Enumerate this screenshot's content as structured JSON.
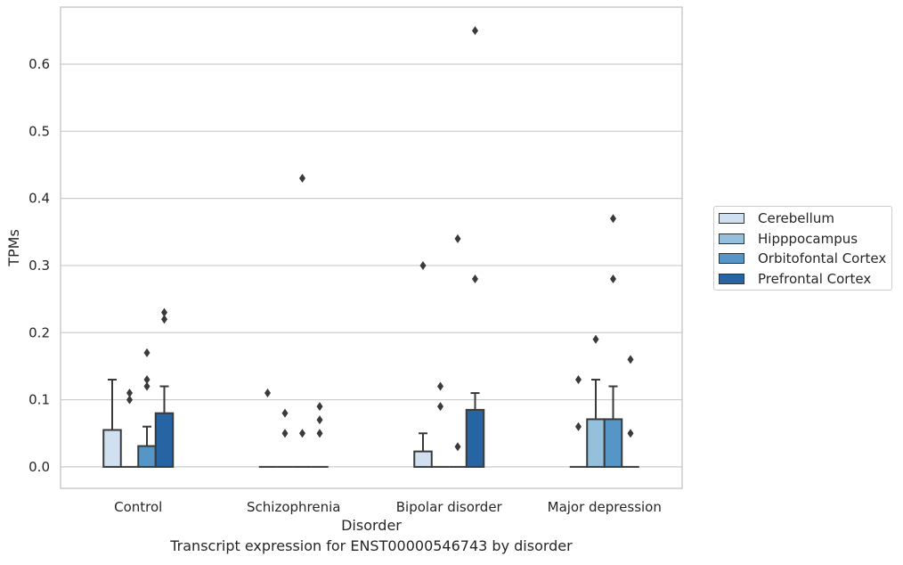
{
  "chart_data": {
    "type": "box",
    "title": "",
    "caption": "Transcript expression for ENST00000546743 by disorder",
    "xlabel": "Disorder",
    "ylabel": "TPMs",
    "ylim": [
      -0.032,
      0.685
    ],
    "yticks": [
      0.0,
      0.1,
      0.2,
      0.3,
      0.4,
      0.5,
      0.6
    ],
    "ytick_labels": [
      "0.0",
      "0.1",
      "0.2",
      "0.3",
      "0.4",
      "0.5",
      "0.6"
    ],
    "grid": "horizontal",
    "legend_position": "right",
    "categories": [
      "Control",
      "Schizophrenia",
      "Bipolar disorder",
      "Major depression"
    ],
    "series": [
      {
        "name": "Cerebellum",
        "color": "#d0e0f0",
        "boxes": [
          {
            "q1": 0.0,
            "q3": 0.055,
            "median": 0.0,
            "whisker_low": 0.0,
            "whisker_high": 0.13,
            "outliers": []
          },
          {
            "q1": 0.0,
            "q3": 0.0,
            "median": 0.0,
            "whisker_low": 0.0,
            "whisker_high": 0.0,
            "outliers": [
              0.11
            ]
          },
          {
            "q1": 0.0,
            "q3": 0.023,
            "median": 0.0,
            "whisker_low": 0.0,
            "whisker_high": 0.05,
            "outliers": [
              0.3
            ]
          },
          {
            "q1": 0.0,
            "q3": 0.0,
            "median": 0.0,
            "whisker_low": 0.0,
            "whisker_high": 0.0,
            "outliers": [
              0.13,
              0.06
            ]
          }
        ]
      },
      {
        "name": "Hipppocampus",
        "color": "#94c0dc",
        "boxes": [
          {
            "q1": 0.0,
            "q3": 0.0,
            "median": 0.0,
            "whisker_low": 0.0,
            "whisker_high": 0.0,
            "outliers": [
              0.11,
              0.1
            ]
          },
          {
            "q1": 0.0,
            "q3": 0.0,
            "median": 0.0,
            "whisker_low": 0.0,
            "whisker_high": 0.0,
            "outliers": [
              0.08,
              0.05
            ]
          },
          {
            "q1": 0.0,
            "q3": 0.0,
            "median": 0.0,
            "whisker_low": 0.0,
            "whisker_high": 0.0,
            "outliers": [
              0.12,
              0.09
            ]
          },
          {
            "q1": 0.0,
            "q3": 0.071,
            "median": 0.0,
            "whisker_low": 0.0,
            "whisker_high": 0.13,
            "outliers": [
              0.19
            ]
          }
        ]
      },
      {
        "name": "Orbitofontal Cortex",
        "color": "#5696c6",
        "boxes": [
          {
            "q1": 0.0,
            "q3": 0.031,
            "median": 0.0,
            "whisker_low": 0.0,
            "whisker_high": 0.06,
            "outliers": [
              0.17,
              0.13,
              0.12
            ]
          },
          {
            "q1": 0.0,
            "q3": 0.0,
            "median": 0.0,
            "whisker_low": 0.0,
            "whisker_high": 0.0,
            "outliers": [
              0.43,
              0.05
            ]
          },
          {
            "q1": 0.0,
            "q3": 0.0,
            "median": 0.0,
            "whisker_low": 0.0,
            "whisker_high": 0.0,
            "outliers": [
              0.34,
              0.03
            ]
          },
          {
            "q1": 0.0,
            "q3": 0.071,
            "median": 0.0,
            "whisker_low": 0.0,
            "whisker_high": 0.12,
            "outliers": [
              0.37,
              0.28
            ]
          }
        ]
      },
      {
        "name": "Prefrontal Cortex",
        "color": "#2664a4",
        "boxes": [
          {
            "q1": 0.0,
            "q3": 0.08,
            "median": 0.0,
            "whisker_low": 0.0,
            "whisker_high": 0.12,
            "outliers": [
              0.23,
              0.22
            ]
          },
          {
            "q1": 0.0,
            "q3": 0.0,
            "median": 0.0,
            "whisker_low": 0.0,
            "whisker_high": 0.0,
            "outliers": [
              0.09,
              0.07,
              0.05
            ]
          },
          {
            "q1": 0.0,
            "q3": 0.085,
            "median": 0.0,
            "whisker_low": 0.0,
            "whisker_high": 0.11,
            "outliers": [
              0.65,
              0.28
            ]
          },
          {
            "q1": 0.0,
            "q3": 0.0,
            "median": 0.0,
            "whisker_low": 0.0,
            "whisker_high": 0.0,
            "outliers": [
              0.16,
              0.05
            ]
          }
        ]
      }
    ]
  }
}
